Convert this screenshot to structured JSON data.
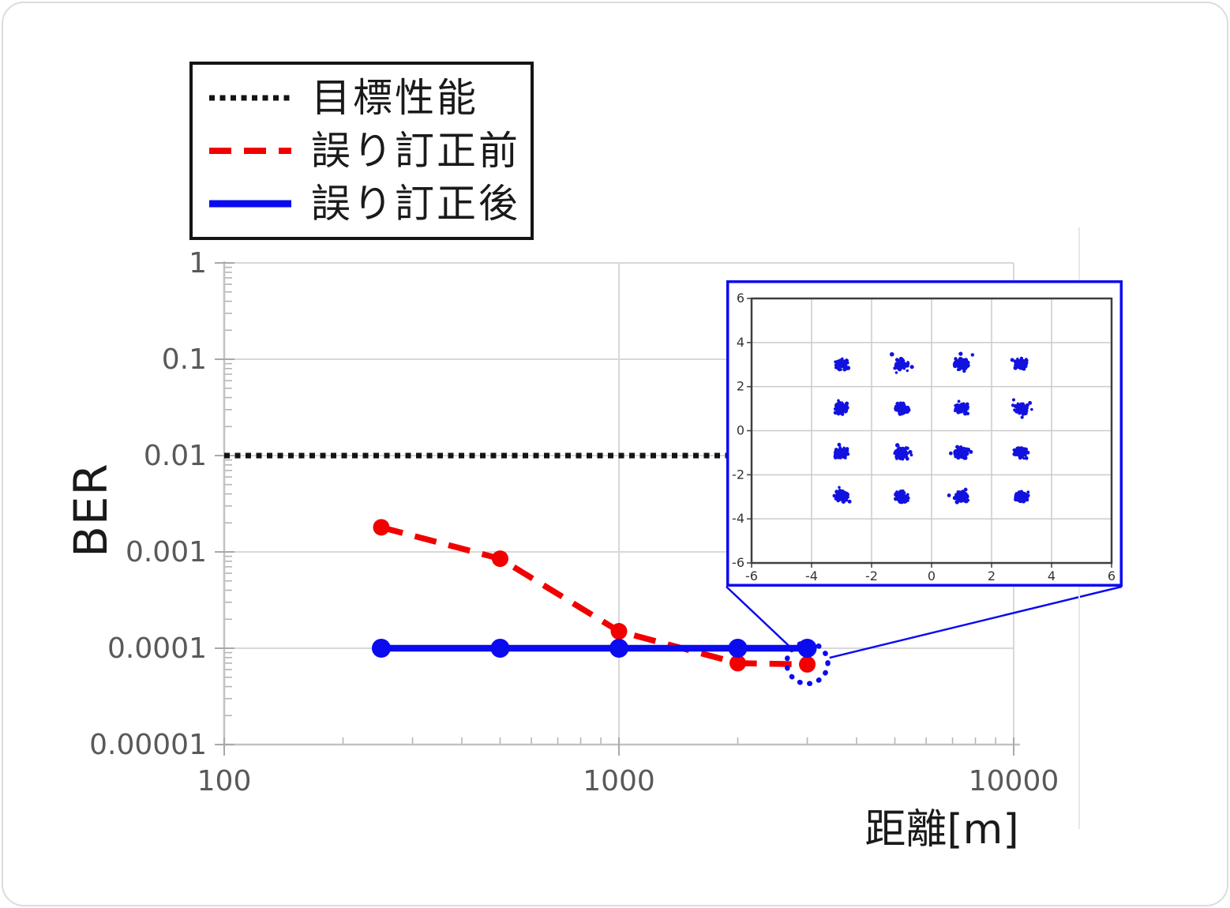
{
  "page": {
    "background": "#ffffff",
    "card_border_color": "#dcdcdc"
  },
  "chart_data": [
    {
      "id": "ber-vs-distance",
      "type": "line",
      "x_scale": "log",
      "y_scale": "log",
      "xlabel": "距離[m]",
      "ylabel": "BER",
      "xlim": [
        100,
        10000
      ],
      "ylim": [
        1e-05,
        1
      ],
      "x_ticks": [
        100,
        1000,
        10000
      ],
      "x_tick_labels": [
        "100",
        "1000",
        "10000"
      ],
      "y_ticks": [
        1,
        0.1,
        0.01,
        0.001,
        0.0001,
        1e-05
      ],
      "y_tick_labels": [
        "1",
        "0.1",
        "0.01",
        "0.001",
        "0.0001",
        "0.00001"
      ],
      "grid": true,
      "legend_position": "top-left-outside",
      "series": [
        {
          "name": "目標性能",
          "style": "dotted",
          "color": "#141414",
          "dash": "7 6.5",
          "width": 7,
          "marker_r": 0,
          "x": [
            100,
            10000
          ],
          "y": [
            0.01,
            0.01
          ]
        },
        {
          "name": "誤り訂正前",
          "style": "dashed",
          "color": "#f20000",
          "dash": "28 16",
          "width": 7.5,
          "marker_r": 10.5,
          "x": [
            250,
            500,
            1000,
            2000,
            3000
          ],
          "y": [
            0.0018,
            0.00085,
            0.00015,
            7e-05,
            6.8e-05
          ]
        },
        {
          "name": "誤り訂正後",
          "style": "solid",
          "color": "#0b0bf0",
          "dash": "none",
          "width": 8.5,
          "marker_r": 12,
          "x": [
            250,
            500,
            1000,
            2000,
            3000
          ],
          "y": [
            0.0001,
            0.0001,
            0.0001,
            0.0001,
            0.0001
          ]
        }
      ],
      "annotation_circle": {
        "x": 3000,
        "y": 7e-05,
        "r": 26,
        "color": "#0b0bf0"
      }
    },
    {
      "id": "constellation-16qam-inset",
      "type": "scatter",
      "xlim": [
        -6,
        6
      ],
      "ylim": [
        -6,
        6
      ],
      "ticks": [
        -6,
        -4,
        -2,
        0,
        2,
        4,
        6
      ],
      "tick_labels": [
        "-6",
        "-4",
        "-2",
        "0",
        "2",
        "4",
        "6"
      ],
      "cluster_centers_x": [
        -3,
        -1,
        1,
        3
      ],
      "cluster_centers_y": [
        3,
        1,
        -1,
        -3
      ],
      "dot_color": "#1212e0",
      "border_color": "#0b0bf0",
      "grid": true
    }
  ]
}
